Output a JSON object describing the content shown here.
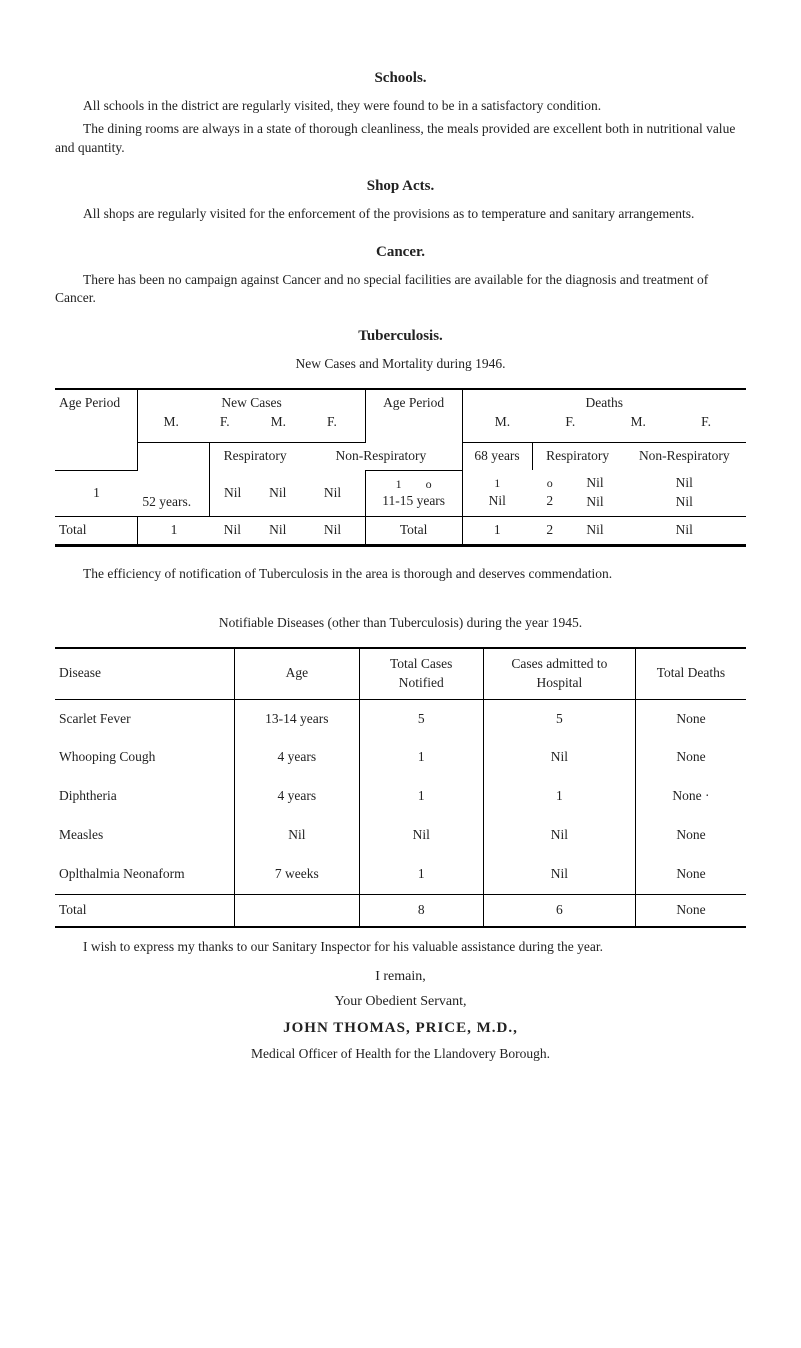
{
  "sections": {
    "schools": {
      "heading": "Schools.",
      "p1": "All schools in the district are regularly visited, they were found to be in a satisfactory condition.",
      "p2": "The dining rooms are always in a state of thorough cleanliness, the meals provided are excellent both in nutritional value and quantity."
    },
    "shop_acts": {
      "heading": "Shop Acts.",
      "p1": "All shops are regularly visited for the enforcement of the provisions as to temperature and sanitary arrangements."
    },
    "cancer": {
      "heading": "Cancer.",
      "p1": "There has been no campaign against Cancer and no special facilities are available for the diagnosis and treatment of Cancer."
    },
    "tb": {
      "heading": "Tuberculosis.",
      "subheading": "New Cases and Mortality during 1946.",
      "headers": {
        "age_period": "Age Period",
        "new_cases": "New Cases",
        "age_period2": "Age Period",
        "deaths": "Deaths",
        "M": "M.",
        "F": "F.",
        "respiratory": "Respiratory",
        "non_respiratory": "Non-Respiratory",
        "total": "Total"
      },
      "row_years_label": "52 years.",
      "row_years": {
        "nc_resp_m": "1",
        "nc_resp_f": "Nil",
        "nc_nonresp_m": "Nil",
        "nc_nonresp_f": "Nil",
        "ap_68": "68 years",
        "ap_1o": [
          "1",
          "o"
        ],
        "ap_1115": "11-15 years",
        "d_resp_m": "Nil",
        "d_resp_f": "2",
        "d_nonresp_m_pair": [
          "Nil",
          "Nil"
        ],
        "d_nonresp_f_pair": [
          "Nil",
          "Nil"
        ]
      },
      "d_resp_label": "Respiratory",
      "d_nonresp_label": "Non-Respiratory",
      "total_row": {
        "nc_resp_m": "1",
        "nc_resp_f": "Nil",
        "nc_nonresp_m": "Nil",
        "nc_nonresp_f": "Nil",
        "total_label": "Total",
        "d_resp_m": "1",
        "d_resp_f": "2",
        "d_nonresp_m": "Nil",
        "d_nonresp_f": "Nil"
      },
      "note": "The efficiency of notification of Tuberculosis in the area is thorough and deserves commendation."
    },
    "notifiable": {
      "title": "Notifiable Diseases (other than Tuberculosis) during the year 1945.",
      "headers": {
        "disease": "Disease",
        "age": "Age",
        "total_cases": "Total Cases Notified",
        "cases_admitted": "Cases admitted to Hospital",
        "total_deaths": "Total Deaths"
      },
      "rows": [
        {
          "disease": "Scarlet Fever",
          "age": "13-14 years",
          "total_cases": "5",
          "admitted": "5",
          "deaths": "None"
        },
        {
          "disease": "Whooping Cough",
          "age": "4 years",
          "total_cases": "1",
          "admitted": "Nil",
          "deaths": "None"
        },
        {
          "disease": "Diphtheria",
          "age": "4 years",
          "total_cases": "1",
          "admitted": "1",
          "deaths": "None  ·"
        },
        {
          "disease": "Measles",
          "age": "Nil",
          "total_cases": "Nil",
          "admitted": "Nil",
          "deaths": "None"
        },
        {
          "disease": "Oplthalmia Neonaform",
          "age": "7 weeks",
          "total_cases": "1",
          "admitted": "Nil",
          "deaths": "None"
        }
      ],
      "total_label": "Total",
      "totals": {
        "total_cases": "8",
        "admitted": "6",
        "deaths": "None"
      }
    },
    "closing": {
      "p1": "I wish to express my thanks to our Sanitary Inspector for his valuable assistance during the year.",
      "remain": "I remain,",
      "servant": "Your Obedient Servant,",
      "signature": "JOHN  THOMAS,  PRICE,  M.D.,",
      "role": "Medical Officer of Health for the Llandovery Borough."
    }
  }
}
